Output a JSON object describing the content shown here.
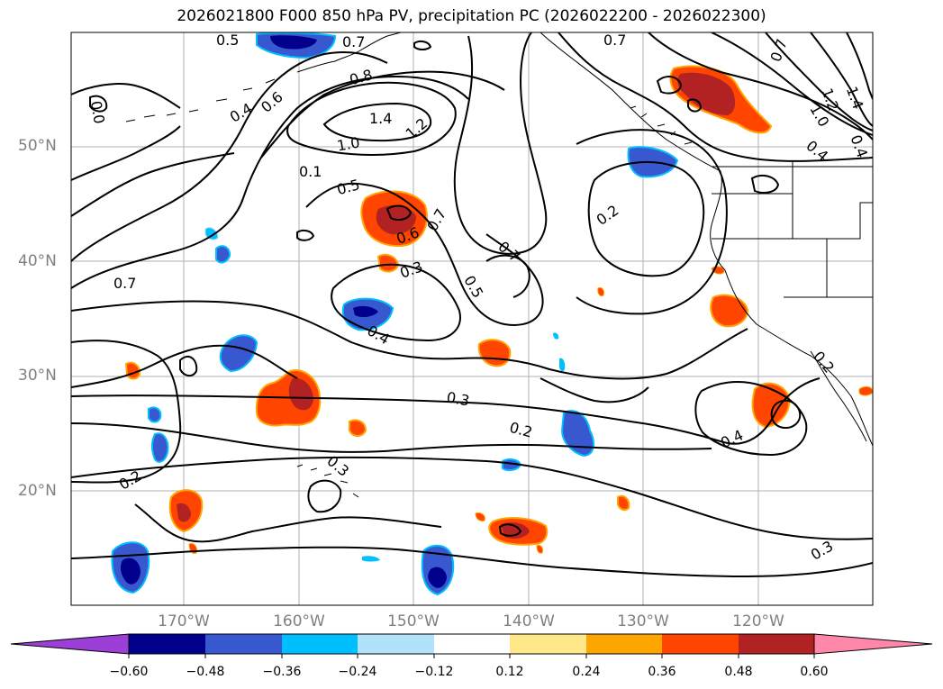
{
  "title": "2026021800 F000 850 hPa PV, precipitation PC (2026022200 - 2026022300)",
  "lat_labels": [
    "50°N",
    "40°N",
    "30°N",
    "20°N"
  ],
  "lon_labels": [
    "170°W",
    "160°W",
    "150°W",
    "140°W",
    "130°W",
    "120°W"
  ],
  "contour_labels": [
    "0.5",
    "0.7",
    "0.7",
    "0.7",
    "0.4",
    "0.6",
    "0.8",
    "1.4",
    "1.2",
    "1.0",
    "0.1",
    "0.5",
    "0.6",
    "0.7",
    "0.7",
    "0.3",
    "0.5",
    "0.4",
    "0.2",
    "0.3",
    "0.2",
    "0.2",
    "0.3",
    "0.4",
    "0.3",
    "1.2",
    "1.0",
    "1.4",
    "0.4",
    "0.2",
    "0.7",
    "0.0",
    "0.4"
  ],
  "colorbar": {
    "ticks": [
      "−0.60",
      "−0.48",
      "−0.36",
      "−0.24",
      "−0.12",
      "0.12",
      "0.24",
      "0.36",
      "0.48",
      "0.60"
    ],
    "colors": [
      "#9b3fd6",
      "#00008c",
      "#3858d0",
      "#00bfff",
      "#b0e2fa",
      "#ffffff",
      "#ffe88a",
      "#ffa500",
      "#ff4500",
      "#b22222",
      "#ff88aa"
    ]
  }
}
